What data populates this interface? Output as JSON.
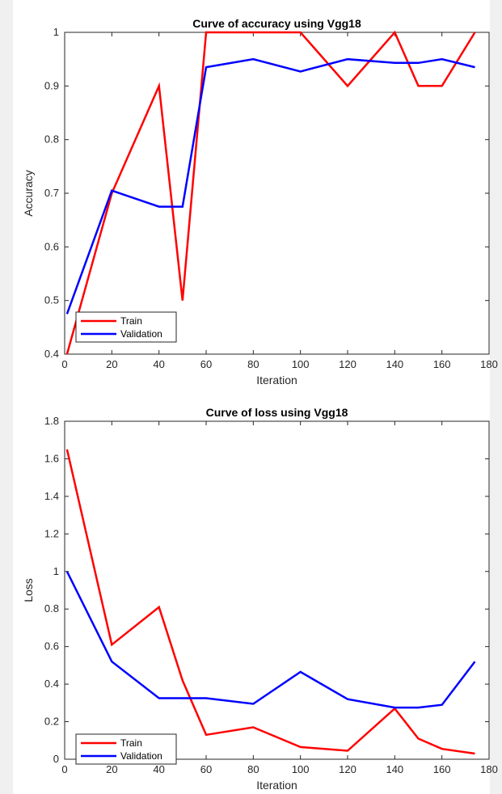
{
  "chart_data": [
    {
      "type": "line",
      "title": "Curve of accuracy using Vgg18",
      "xlabel": "Iteration",
      "ylabel": "Accuracy",
      "xlim": [
        0,
        180
      ],
      "ylim": [
        0.4,
        1
      ],
      "xticks": [
        0,
        20,
        40,
        60,
        80,
        100,
        120,
        140,
        160,
        180
      ],
      "yticks": [
        0.4,
        0.5,
        0.6,
        0.7,
        0.8,
        0.9,
        1
      ],
      "xtick_labels": [
        "0",
        "20",
        "40",
        "60",
        "80",
        "100",
        "120",
        "140",
        "160",
        "180"
      ],
      "ytick_labels": [
        "0.4",
        "0.5",
        "0.6",
        "0.7",
        "0.8",
        "0.9",
        "1"
      ],
      "grid": false,
      "legend_position": "bottom-left",
      "series": [
        {
          "name": "Train",
          "color": "#ff0000",
          "x": [
            1,
            20,
            40,
            50,
            60,
            80,
            100,
            120,
            140,
            150,
            160,
            174
          ],
          "y": [
            0.4,
            0.7,
            0.9,
            0.5,
            1.0,
            1.0,
            1.0,
            0.9,
            1.0,
            0.9,
            0.9,
            1.0
          ]
        },
        {
          "name": "Validation",
          "color": "#0000ff",
          "x": [
            1,
            20,
            40,
            50,
            60,
            80,
            100,
            120,
            140,
            150,
            160,
            174
          ],
          "y": [
            0.475,
            0.705,
            0.675,
            0.675,
            0.935,
            0.95,
            0.927,
            0.95,
            0.943,
            0.943,
            0.95,
            0.935
          ]
        }
      ]
    },
    {
      "type": "line",
      "title": "Curve of loss using Vgg18",
      "xlabel": "Iteration",
      "ylabel": "Loss",
      "xlim": [
        0,
        180
      ],
      "ylim": [
        0,
        1.8
      ],
      "xticks": [
        0,
        20,
        40,
        60,
        80,
        100,
        120,
        140,
        160,
        180
      ],
      "yticks": [
        0,
        0.2,
        0.4,
        0.6,
        0.8,
        1,
        1.2,
        1.4,
        1.6,
        1.8
      ],
      "xtick_labels": [
        "0",
        "20",
        "40",
        "60",
        "80",
        "100",
        "120",
        "140",
        "160",
        "180"
      ],
      "ytick_labels": [
        "0",
        "0.2",
        "0.4",
        "0.6",
        "0.8",
        "1",
        "1.2",
        "1.4",
        "1.6",
        "1.8"
      ],
      "grid": false,
      "legend_position": "bottom-left",
      "series": [
        {
          "name": "Train",
          "color": "#ff0000",
          "x": [
            1,
            20,
            40,
            50,
            60,
            80,
            100,
            120,
            140,
            150,
            160,
            174
          ],
          "y": [
            1.65,
            0.61,
            0.81,
            0.42,
            0.13,
            0.17,
            0.065,
            0.045,
            0.27,
            0.11,
            0.055,
            0.03
          ]
        },
        {
          "name": "Validation",
          "color": "#0000ff",
          "x": [
            1,
            20,
            40,
            50,
            60,
            80,
            100,
            120,
            140,
            150,
            160,
            174
          ],
          "y": [
            1.0,
            0.52,
            0.325,
            0.325,
            0.325,
            0.295,
            0.465,
            0.32,
            0.275,
            0.275,
            0.29,
            0.52
          ]
        }
      ]
    }
  ]
}
